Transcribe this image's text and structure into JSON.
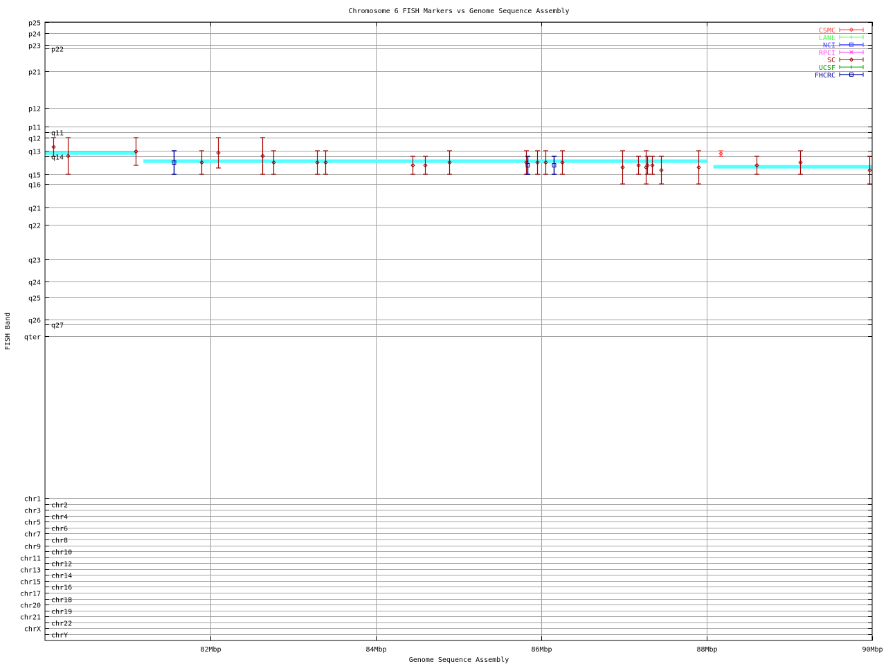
{
  "chart_data": {
    "type": "scatter",
    "title": "Chromosome 6 FISH Markers vs Genome Sequence Assembly",
    "xlabel": "Genome Sequence Assembly",
    "ylabel": "FISH Band",
    "xlim": [
      80,
      90
    ],
    "x_unit": "Mbp",
    "x_ticks": [
      {
        "value": 82,
        "label": "82Mbp"
      },
      {
        "value": 84,
        "label": "84Mbp"
      },
      {
        "value": 86,
        "label": "86Mbp"
      },
      {
        "value": 88,
        "label": "88Mbp"
      },
      {
        "value": 90,
        "label": "90Mbp"
      }
    ],
    "y_ticks": [
      "p25",
      "p24",
      "p23",
      "p22",
      "p21",
      "p12",
      "p11",
      "q11",
      "q12",
      "q13",
      "q14",
      "q15",
      "q16",
      "q21",
      "q22",
      "q23",
      "q24",
      "q25",
      "q26",
      "q27",
      "qter",
      "chr1",
      "chr2",
      "chr3",
      "chr4",
      "chr5",
      "chr6",
      "chr7",
      "chr8",
      "chr9",
      "chr10",
      "chr11",
      "chr12",
      "chr13",
      "chr14",
      "chr15",
      "chr16",
      "chr17",
      "chr18",
      "chr20",
      "chr19",
      "chr21",
      "chr22",
      "chrX",
      "chrY"
    ],
    "grid": true,
    "legend_position": "top-right",
    "legend": [
      {
        "name": "CSMC",
        "color": "#ff4040",
        "marker": "diamond"
      },
      {
        "name": "LANL",
        "color": "#40ff40",
        "marker": "plus"
      },
      {
        "name": "NCI",
        "color": "#4040ff",
        "marker": "square"
      },
      {
        "name": "RPCI",
        "color": "#ff40ff",
        "marker": "cross"
      },
      {
        "name": "SC",
        "color": "#a00000",
        "marker": "diamond"
      },
      {
        "name": "UCSF",
        "color": "#00a000",
        "marker": "plus"
      },
      {
        "name": "FHCRC",
        "color": "#0000a0",
        "marker": "square"
      }
    ],
    "assembly_color": "#50ffff",
    "assembly_segments": [
      {
        "x": [
          80.0,
          81.1
        ],
        "y": [
          "q13",
          0.4
        ]
      },
      {
        "x": [
          81.19,
          88.0
        ],
        "y": [
          "q14",
          0.27
        ]
      },
      {
        "x": [
          88.08,
          90.0
        ],
        "y": [
          "q14",
          0.58
        ]
      }
    ],
    "points": [
      {
        "series": "SC",
        "x": 80.1,
        "lo": [
          "q12",
          0
        ],
        "hi": [
          "q14",
          0
        ]
      },
      {
        "series": "SC",
        "x": 80.28,
        "lo": [
          "q12",
          0
        ],
        "hi": [
          "q15",
          0
        ]
      },
      {
        "series": "SC",
        "x": 81.1,
        "lo": [
          "q12",
          0
        ],
        "hi": [
          "q14",
          0.5
        ]
      },
      {
        "series": "FHCRC",
        "x": 81.56,
        "lo": [
          "q13",
          0
        ],
        "hi": [
          "q15",
          0
        ]
      },
      {
        "series": "SC",
        "x": 81.89,
        "lo": [
          "q13",
          0
        ],
        "hi": [
          "q15",
          0
        ]
      },
      {
        "series": "SC",
        "x": 82.09,
        "lo": [
          "q12",
          0
        ],
        "hi": [
          "q14",
          0.65
        ]
      },
      {
        "series": "SC",
        "x": 82.63,
        "lo": [
          "q12",
          0
        ],
        "hi": [
          "q15",
          0
        ]
      },
      {
        "series": "SC",
        "x": 82.76,
        "lo": [
          "q13",
          0
        ],
        "hi": [
          "q15",
          0
        ]
      },
      {
        "series": "SC",
        "x": 83.29,
        "lo": [
          "q13",
          0
        ],
        "hi": [
          "q15",
          0
        ]
      },
      {
        "series": "SC",
        "x": 83.39,
        "lo": [
          "q13",
          0
        ],
        "hi": [
          "q15",
          0
        ]
      },
      {
        "series": "SC",
        "x": 84.44,
        "lo": [
          "q14",
          0
        ],
        "hi": [
          "q15",
          0
        ]
      },
      {
        "series": "SC",
        "x": 84.59,
        "lo": [
          "q14",
          0
        ],
        "hi": [
          "q15",
          0
        ]
      },
      {
        "series": "SC",
        "x": 84.89,
        "lo": [
          "q13",
          0
        ],
        "hi": [
          "q15",
          0
        ]
      },
      {
        "series": "SC",
        "x": 85.82,
        "lo": [
          "q13",
          0
        ],
        "hi": [
          "q15",
          0
        ]
      },
      {
        "series": "FHCRC",
        "x": 85.83,
        "lo": [
          "q14",
          0
        ],
        "hi": [
          "q15",
          0
        ]
      },
      {
        "series": "SC",
        "x": 85.95,
        "lo": [
          "q13",
          0
        ],
        "hi": [
          "q15",
          0
        ]
      },
      {
        "series": "SC",
        "x": 86.05,
        "lo": [
          "q13",
          0
        ],
        "hi": [
          "q15",
          0
        ]
      },
      {
        "series": "FHCRC",
        "x": 86.15,
        "lo": [
          "q14",
          0
        ],
        "hi": [
          "q15",
          0
        ]
      },
      {
        "series": "SC",
        "x": 86.25,
        "lo": [
          "q13",
          0
        ],
        "hi": [
          "q15",
          0
        ]
      },
      {
        "series": "SC",
        "x": 86.98,
        "lo": [
          "q13",
          0
        ],
        "hi": [
          "q16",
          0
        ]
      },
      {
        "series": "SC",
        "x": 87.17,
        "lo": [
          "q14",
          0
        ],
        "hi": [
          "q15",
          0
        ]
      },
      {
        "series": "SC",
        "x": 87.26,
        "lo": [
          "q13",
          0
        ],
        "hi": [
          "q16",
          0
        ]
      },
      {
        "series": "SC",
        "x": 87.28,
        "lo": [
          "q14",
          0
        ],
        "hi": [
          "q15",
          0
        ]
      },
      {
        "series": "SC",
        "x": 87.34,
        "lo": [
          "q14",
          0
        ],
        "hi": [
          "q15",
          0
        ]
      },
      {
        "series": "SC",
        "x": 87.45,
        "lo": [
          "q14",
          0
        ],
        "hi": [
          "q16",
          0
        ]
      },
      {
        "series": "SC",
        "x": 87.9,
        "lo": [
          "q13",
          0
        ],
        "hi": [
          "q16",
          0
        ]
      },
      {
        "series": "CSMC",
        "x": 88.17,
        "lo": [
          "q13",
          0
        ],
        "hi": [
          "q14",
          0
        ]
      },
      {
        "series": "SC",
        "x": 88.6,
        "lo": [
          "q14",
          0
        ],
        "hi": [
          "q15",
          0
        ]
      },
      {
        "series": "SC",
        "x": 89.13,
        "lo": [
          "q13",
          0
        ],
        "hi": [
          "q15",
          0
        ]
      },
      {
        "series": "SC",
        "x": 89.97,
        "lo": [
          "q14",
          0
        ],
        "hi": [
          "q16",
          0
        ]
      }
    ]
  }
}
